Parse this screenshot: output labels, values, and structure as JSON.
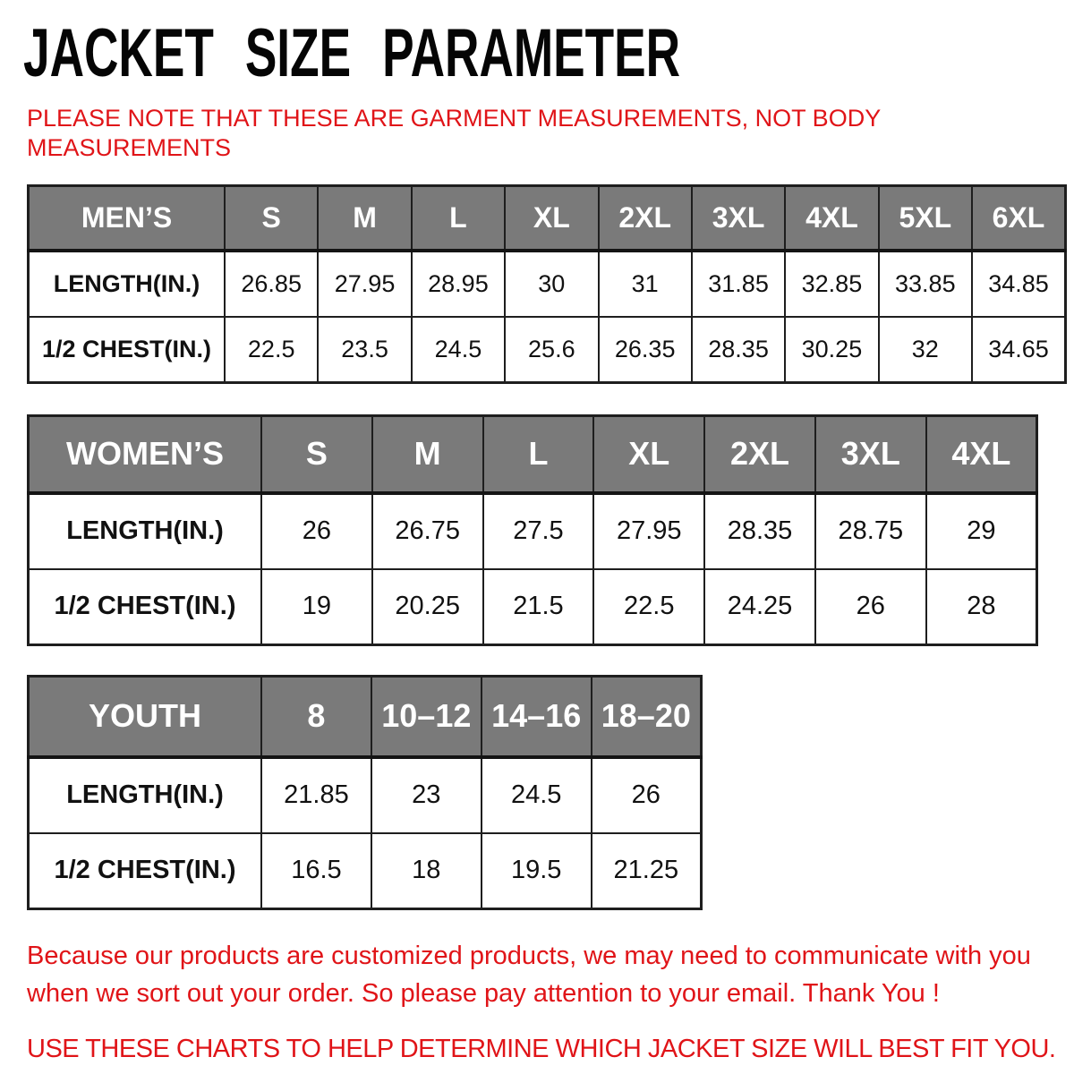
{
  "page": {
    "title": "JACKET SIZE PARAMETER",
    "note_line1": "PLEASE NOTE THAT THESE ARE GARMENT MEASUREMENTS, NOT BODY",
    "note_line2": "MEASUREMENTS",
    "footer_note_line1": "Because our products are customized products, we may need to communicate with you",
    "footer_note_line2": "when we sort out your order. So please pay attention to your email. Thank You !",
    "footer_instruction": "USE THESE CHARTS TO HELP DETERMINE WHICH JACKET SIZE WILL BEST FIT YOU."
  },
  "colors": {
    "accent_red": "#e01418",
    "header_gray": "#7a7a7a",
    "border_dark": "#1e1e1e",
    "text_black": "#111111"
  },
  "tables": [
    {
      "name": "mens",
      "header": [
        "MEN’S",
        "S",
        "M",
        "L",
        "XL",
        "2XL",
        "3XL",
        "4XL",
        "5XL",
        "6XL"
      ],
      "rows": [
        {
          "label": "LENGTH(IN.)",
          "values": [
            "26.85",
            "27.95",
            "28.95",
            "30",
            "31",
            "31.85",
            "32.85",
            "33.85",
            "34.85"
          ]
        },
        {
          "label": "1/2 CHEST(IN.)",
          "values": [
            "22.5",
            "23.5",
            "24.5",
            "25.6",
            "26.35",
            "28.35",
            "30.25",
            "32",
            "34.65"
          ]
        }
      ]
    },
    {
      "name": "womens",
      "header": [
        "WOMEN’S",
        "S",
        "M",
        "L",
        "XL",
        "2XL",
        "3XL",
        "4XL"
      ],
      "rows": [
        {
          "label": "LENGTH(IN.)",
          "values": [
            "26",
            "26.75",
            "27.5",
            "27.95",
            "28.35",
            "28.75",
            "29"
          ]
        },
        {
          "label": "1/2 CHEST(IN.)",
          "values": [
            "19",
            "20.25",
            "21.5",
            "22.5",
            "24.25",
            "26",
            "28"
          ]
        }
      ]
    },
    {
      "name": "youth",
      "header": [
        "YOUTH",
        "8",
        "10–12",
        "14–16",
        "18–20"
      ],
      "rows": [
        {
          "label": "LENGTH(IN.)",
          "values": [
            "21.85",
            "23",
            "24.5",
            "26"
          ]
        },
        {
          "label": "1/2 CHEST(IN.)",
          "values": [
            "16.5",
            "18",
            "19.5",
            "21.25"
          ]
        }
      ]
    }
  ]
}
